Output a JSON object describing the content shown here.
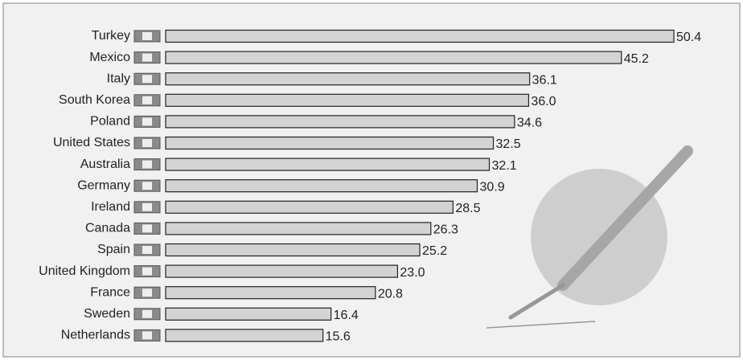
{
  "chart_data": {
    "type": "bar",
    "orientation": "horizontal",
    "categories": [
      "Turkey",
      "Mexico",
      "Italy",
      "South Korea",
      "Poland",
      "United States",
      "Australia",
      "Germany",
      "Ireland",
      "Canada",
      "Spain",
      "United Kingdom",
      "France",
      "Sweden",
      "Netherlands"
    ],
    "values": [
      50.4,
      45.2,
      36.1,
      36.0,
      34.6,
      32.5,
      32.1,
      30.9,
      28.5,
      26.3,
      25.2,
      23.0,
      20.8,
      16.4,
      15.6
    ],
    "value_labels": [
      "50.4",
      "45.2",
      "36.1",
      "36.0",
      "34.6",
      "32.5",
      "32.1",
      "30.9",
      "28.5",
      "26.3",
      "25.2",
      "23.0",
      "20.8",
      "16.4",
      "15.6"
    ],
    "color": "#d3d3d3"
  }
}
